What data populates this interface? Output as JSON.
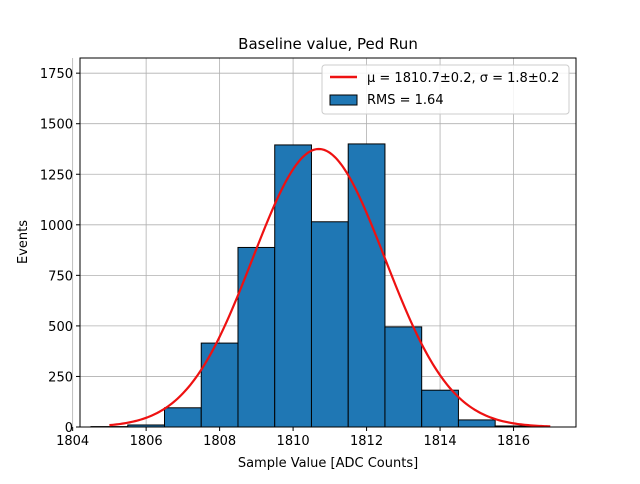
{
  "chart_data": {
    "type": "bar",
    "title": "Baseline value, Ped Run",
    "xlabel": "Sample Value [ADC Counts]",
    "ylabel": "Events",
    "xlim": [
      1804.2,
      1817.7
    ],
    "ylim": [
      0,
      1825
    ],
    "xticks": [
      1804,
      1806,
      1808,
      1810,
      1812,
      1814,
      1816
    ],
    "yticks": [
      0,
      250,
      500,
      750,
      1000,
      1250,
      1500,
      1750
    ],
    "grid": true,
    "legend_position": "top-right",
    "histogram": {
      "name": "RMS = 1.64",
      "color": "#1f77b4",
      "edgecolor": "#000000",
      "bin_edges": [
        1804.5,
        1805.5,
        1806.5,
        1807.5,
        1808.5,
        1809.5,
        1810.5,
        1811.5,
        1812.5,
        1813.5,
        1814.5,
        1815.5,
        1816.5
      ],
      "counts": [
        2,
        10,
        95,
        415,
        888,
        1395,
        1015,
        1400,
        495,
        182,
        35,
        5
      ]
    },
    "fit": {
      "name": "μ = 1810.7±0.2, σ = 1.8±0.2",
      "color": "#ee1111",
      "function": "gaussian",
      "amplitude": 1375,
      "mean": 1810.7,
      "sigma": 1.8,
      "x_range": [
        1805.0,
        1817.0
      ]
    }
  }
}
